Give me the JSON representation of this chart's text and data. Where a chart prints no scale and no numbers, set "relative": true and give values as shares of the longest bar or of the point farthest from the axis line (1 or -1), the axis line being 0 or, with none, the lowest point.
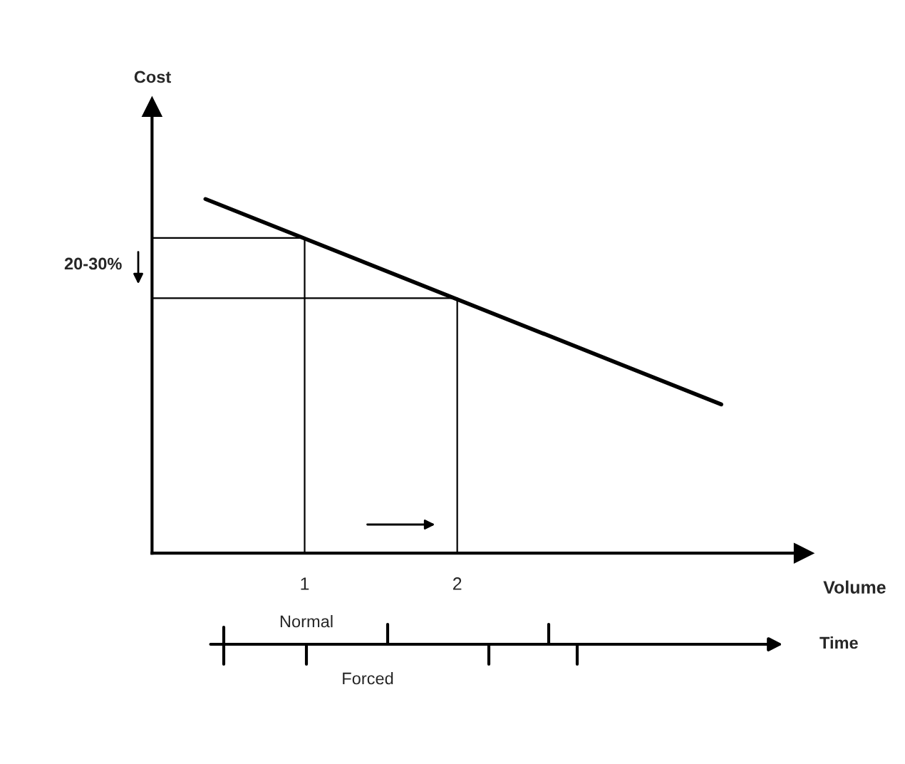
{
  "chart_data": {
    "type": "line",
    "xlabel": "Volume",
    "relative": true,
    "xlim": [
      0,
      4.27
    ],
    "xticks": [
      1,
      2
    ],
    "grid": false,
    "series": [
      {
        "color": "#000000",
        "x": [
          0.35,
          3.73
        ],
        "values": [
          1,
          0.42
        ]
      },
      {
        "color": "#000000",
        "x": [
          0,
          1,
          1
        ],
        "values": [
          0.89,
          0.89,
          0
        ]
      },
      {
        "color": "#000000",
        "x": [
          0,
          2,
          2
        ],
        "values": [
          0.72,
          0.72,
          0
        ]
      }
    ],
    "annotations": [
      "Cost",
      "20-30%",
      "Normal",
      "Forced",
      "Time"
    ]
  }
}
